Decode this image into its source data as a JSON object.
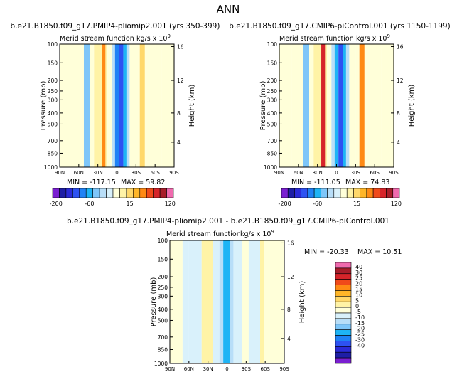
{
  "title": "ANN",
  "chart_data": [
    {
      "type": "heatmap",
      "title": "b.e21.B1850.f09_g17.PMIP4-pliomip2.001 (yrs 350-399)",
      "subtitle_left": "Merid stream function",
      "units_base": "kg/s x 10",
      "units_exp": "9",
      "ylabel": "Pressure (mb)",
      "ylabel2": "Height (km)",
      "x_ticks": [
        "90N",
        "60N",
        "30N",
        "0",
        "30S",
        "60S",
        "90S"
      ],
      "y_ticks": [
        "100",
        "150",
        "200",
        "250",
        "300",
        "400",
        "500",
        "700",
        "850",
        "1000"
      ],
      "y2_ticks": [
        "16",
        "12",
        "8",
        "4"
      ],
      "min_text": "MIN = -117.15",
      "max_text": "MAX = 59.82",
      "min": -117.15,
      "max": 59.82,
      "cells": [
        {
          "lat0": -90,
          "lat1": -70,
          "value": 0
        },
        {
          "lat0": -70,
          "lat1": -52,
          "value": -5
        },
        {
          "lat0": -52,
          "lat1": -43,
          "value": -40
        },
        {
          "lat0": -43,
          "lat1": -36,
          "value": -5
        },
        {
          "lat0": -36,
          "lat1": -24,
          "value": 10
        },
        {
          "lat0": -24,
          "lat1": -18,
          "value": 40
        },
        {
          "lat0": -18,
          "lat1": -15,
          "value": 10
        },
        {
          "lat0": -15,
          "lat1": -8,
          "value": -5
        },
        {
          "lat0": -8,
          "lat1": -3,
          "value": -30
        },
        {
          "lat0": -3,
          "lat1": 3,
          "value": -80
        },
        {
          "lat0": 3,
          "lat1": 10,
          "value": -117
        },
        {
          "lat0": 10,
          "lat1": 15,
          "value": -60
        },
        {
          "lat0": 15,
          "lat1": 20,
          "value": -20
        },
        {
          "lat0": 20,
          "lat1": 30,
          "value": -5
        },
        {
          "lat0": 30,
          "lat1": 36,
          "value": 5
        },
        {
          "lat0": 36,
          "lat1": 44,
          "value": 15
        },
        {
          "lat0": 44,
          "lat1": 52,
          "value": 5
        },
        {
          "lat0": 52,
          "lat1": 70,
          "value": -5
        },
        {
          "lat0": 70,
          "lat1": 90,
          "value": 0
        }
      ],
      "colorbar": {
        "labels": [
          {
            "level": -200,
            "text": "-200"
          },
          {
            "level": -60,
            "text": "-60"
          },
          {
            "level": 15,
            "text": "15"
          },
          {
            "level": 120,
            "text": "120"
          }
        ]
      }
    },
    {
      "type": "heatmap",
      "title": "b.e21.B1850.f09_g17.CMIP6-piControl.001 (yrs 1150-1199)",
      "subtitle_left": "Merid stream function",
      "units_base": "kg/s x 10",
      "units_exp": "9",
      "ylabel": "Pressure (mb)",
      "ylabel2": "Height (km)",
      "x_ticks": [
        "90N",
        "60N",
        "30N",
        "0",
        "30S",
        "60S",
        "90S"
      ],
      "y_ticks": [
        "100",
        "150",
        "200",
        "250",
        "300",
        "400",
        "500",
        "700",
        "850",
        "1000"
      ],
      "y2_ticks": [
        "16",
        "12",
        "8",
        "4"
      ],
      "min_text": "MIN = -111.05",
      "max_text": "MAX = 74.83",
      "min": -111.05,
      "max": 74.83,
      "cells": [
        {
          "lat0": -90,
          "lat1": -70,
          "value": 0
        },
        {
          "lat0": -70,
          "lat1": -52,
          "value": -5
        },
        {
          "lat0": -52,
          "lat1": -43,
          "value": -40
        },
        {
          "lat0": -43,
          "lat1": -36,
          "value": -5
        },
        {
          "lat0": -36,
          "lat1": -24,
          "value": 10
        },
        {
          "lat0": -24,
          "lat1": -18,
          "value": 70
        },
        {
          "lat0": -18,
          "lat1": -15,
          "value": 10
        },
        {
          "lat0": -15,
          "lat1": -8,
          "value": -5
        },
        {
          "lat0": -8,
          "lat1": -3,
          "value": -20
        },
        {
          "lat0": -3,
          "lat1": 3,
          "value": -60
        },
        {
          "lat0": 3,
          "lat1": 10,
          "value": -111
        },
        {
          "lat0": 10,
          "lat1": 15,
          "value": -60
        },
        {
          "lat0": 15,
          "lat1": 20,
          "value": -20
        },
        {
          "lat0": 20,
          "lat1": 30,
          "value": -5
        },
        {
          "lat0": 30,
          "lat1": 36,
          "value": 5
        },
        {
          "lat0": 36,
          "lat1": 44,
          "value": 30
        },
        {
          "lat0": 44,
          "lat1": 52,
          "value": 5
        },
        {
          "lat0": 52,
          "lat1": 70,
          "value": -5
        },
        {
          "lat0": 70,
          "lat1": 90,
          "value": 0
        }
      ],
      "colorbar": {
        "labels": [
          {
            "level": -200,
            "text": "-200"
          },
          {
            "level": -60,
            "text": "-60"
          },
          {
            "level": 15,
            "text": "15"
          },
          {
            "level": 120,
            "text": "120"
          }
        ]
      }
    },
    {
      "type": "heatmap",
      "title": "b.e21.B1850.f09_g17.PMIP4-pliomip2.001 - b.e21.B1850.f09_g17.CMIP6-piControl.001",
      "subtitle_left": "Merid stream function",
      "units_base": "kg/s x 10",
      "units_exp": "9",
      "ylabel": "Pressure (mb)",
      "ylabel2": "Height (km)",
      "x_ticks": [
        "90N",
        "60N",
        "30N",
        "0",
        "30S",
        "60S",
        "90S"
      ],
      "y_ticks": [
        "100",
        "150",
        "200",
        "250",
        "300",
        "400",
        "500",
        "700",
        "850",
        "1000"
      ],
      "y2_ticks": [
        "16",
        "12",
        "8",
        "4"
      ],
      "min_text": "MIN = -20.33",
      "max_text": "MAX = 10.51",
      "min": -20.33,
      "max": 10.51,
      "cells": [
        {
          "lat0": -90,
          "lat1": -70,
          "value": 0
        },
        {
          "lat0": -70,
          "lat1": -60,
          "value": -5
        },
        {
          "lat0": -60,
          "lat1": -40,
          "value": -5
        },
        {
          "lat0": -40,
          "lat1": -22,
          "value": 2
        },
        {
          "lat0": -22,
          "lat1": -12,
          "value": -5
        },
        {
          "lat0": -12,
          "lat1": -6,
          "value": -10
        },
        {
          "lat0": -6,
          "lat1": 4,
          "value": -20
        },
        {
          "lat0": 4,
          "lat1": 10,
          "value": -10
        },
        {
          "lat0": 10,
          "lat1": 24,
          "value": -5
        },
        {
          "lat0": 24,
          "lat1": 34,
          "value": -3
        },
        {
          "lat0": 34,
          "lat1": 52,
          "value": -5
        },
        {
          "lat0": 52,
          "lat1": 58,
          "value": 2
        },
        {
          "lat0": 58,
          "lat1": 90,
          "value": 0
        }
      ],
      "colorbar": {
        "labels": [
          {
            "level": 40,
            "text": "40"
          },
          {
            "level": 30,
            "text": "30"
          },
          {
            "level": 25,
            "text": "25"
          },
          {
            "level": 20,
            "text": "20"
          },
          {
            "level": 15,
            "text": "15"
          },
          {
            "level": 10,
            "text": "10"
          },
          {
            "level": 5,
            "text": "5"
          },
          {
            "level": 0,
            "text": "0"
          },
          {
            "level": -5,
            "text": "-5"
          },
          {
            "level": -10,
            "text": "-10"
          },
          {
            "level": -15,
            "text": "-15"
          },
          {
            "level": -20,
            "text": "-20"
          },
          {
            "level": -25,
            "text": "-25"
          },
          {
            "level": -30,
            "text": "-30"
          },
          {
            "level": -40,
            "text": "-40"
          }
        ]
      }
    }
  ],
  "colors": {
    "scale_abs": [
      "#7a1fd1",
      "#1e1ea6",
      "#2b2bd8",
      "#2d52f2",
      "#1f82f5",
      "#1eb4f5",
      "#7ec6f9",
      "#b8def8",
      "#d9f1fb",
      "#ffffd9",
      "#fff3a6",
      "#ffd86a",
      "#ffb628",
      "#ff8a14",
      "#f04a1a",
      "#d6242a",
      "#a81d2a",
      "#f06aae"
    ],
    "scale_diff": [
      "#f06aae",
      "#a81d2a",
      "#d6242a",
      "#f04a1a",
      "#ff8a14",
      "#ffb628",
      "#ffd86a",
      "#fff3a6",
      "#ffffd9",
      "#d9f1fb",
      "#b8def8",
      "#7ec6f9",
      "#1eb4f5",
      "#1f82f5",
      "#2d52f2",
      "#2b2bd8",
      "#1e1ea6",
      "#7a1fd1"
    ]
  }
}
